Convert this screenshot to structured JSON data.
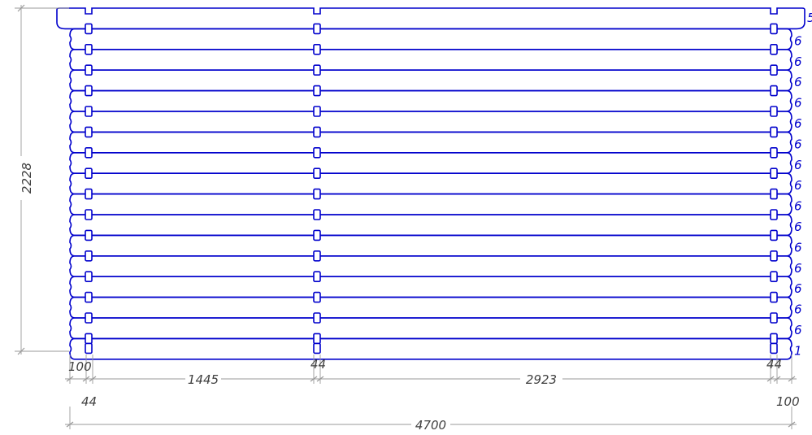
{
  "drawing": {
    "colors": {
      "log_outline": "#0000cc",
      "dimension": "#9a9a9a",
      "text": "#404040",
      "tag": "#0000cc"
    },
    "height_dimension": "2228",
    "dowel_spacing_dimensions": {
      "left_edge": "100",
      "left_dowel": "44",
      "left_span": "1445",
      "middle_dowel": "44",
      "right_span": "2923",
      "right_dowel": "44",
      "right_edge": "100"
    },
    "overall_length": "4700",
    "log_tags": [
      "5",
      "6",
      "6",
      "6",
      "6",
      "6",
      "6",
      "6",
      "6",
      "6",
      "6",
      "6",
      "6",
      "6",
      "6",
      "6",
      "1"
    ]
  }
}
